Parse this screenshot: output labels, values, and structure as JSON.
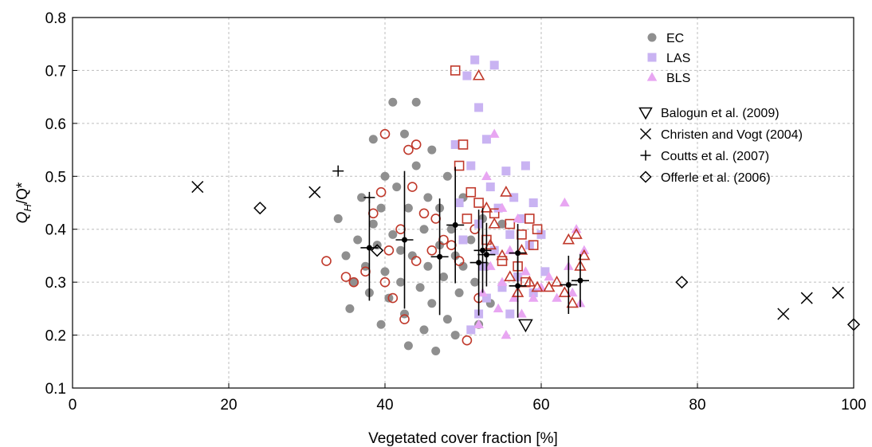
{
  "chart_data": {
    "type": "scatter",
    "xlabel": "Vegetated cover fraction [%]",
    "ylabel_main": "Q",
    "ylabel_sub": "H",
    "ylabel_rest": "/Q*",
    "xlim": [
      0,
      100
    ],
    "ylim": [
      0.1,
      0.8
    ],
    "xticks": [
      0,
      20,
      40,
      60,
      80,
      100
    ],
    "yticks": [
      0.1,
      0.2,
      0.3,
      0.4,
      0.5,
      0.6,
      0.7,
      0.8
    ],
    "grid": true,
    "legend_position": "top-right",
    "colors": {
      "ec": "#8f8f8f",
      "las": "#c9b3f2",
      "bls": "#e8a6f2",
      "outline": "#c0392b",
      "ref": "#000000"
    },
    "legend_sets": [
      {
        "label": "EC",
        "marker": "circle",
        "color": "#8f8f8f"
      },
      {
        "label": "LAS",
        "marker": "square",
        "color": "#c9b3f2"
      },
      {
        "label": "BLS",
        "marker": "triangle",
        "color": "#e8a6f2"
      }
    ],
    "legend_refs": [
      {
        "label": "Balogun et al. (2009)",
        "marker": "triangle-down"
      },
      {
        "label": "Christen and Vogt (2004)",
        "marker": "x"
      },
      {
        "label": "Coutts et al. (2007)",
        "marker": "plus"
      },
      {
        "label": "Offerle et al. (2006)",
        "marker": "diamond"
      }
    ],
    "series": [
      {
        "name": "EC",
        "marker": "circle",
        "outlined": false,
        "points": [
          [
            34,
            0.42
          ],
          [
            35,
            0.35
          ],
          [
            35.5,
            0.25
          ],
          [
            36,
            0.3
          ],
          [
            36.5,
            0.38
          ],
          [
            37,
            0.46
          ],
          [
            37.5,
            0.33
          ],
          [
            38,
            0.28
          ],
          [
            38.5,
            0.57
          ],
          [
            38.5,
            0.41
          ],
          [
            39,
            0.37
          ],
          [
            39.5,
            0.44
          ],
          [
            39.5,
            0.22
          ],
          [
            40,
            0.32
          ],
          [
            40,
            0.5
          ],
          [
            40.5,
            0.27
          ],
          [
            41,
            0.39
          ],
          [
            41,
            0.64
          ],
          [
            41.5,
            0.48
          ],
          [
            42,
            0.36
          ],
          [
            42,
            0.3
          ],
          [
            42.5,
            0.24
          ],
          [
            42.5,
            0.58
          ],
          [
            43,
            0.44
          ],
          [
            43,
            0.18
          ],
          [
            43.5,
            0.35
          ],
          [
            44,
            0.52
          ],
          [
            44,
            0.64
          ],
          [
            44.5,
            0.29
          ],
          [
            45,
            0.4
          ],
          [
            45,
            0.21
          ],
          [
            45.5,
            0.46
          ],
          [
            45.5,
            0.33
          ],
          [
            46,
            0.55
          ],
          [
            46,
            0.26
          ],
          [
            46.5,
            0.17
          ],
          [
            47,
            0.37
          ],
          [
            47,
            0.44
          ],
          [
            47.5,
            0.31
          ],
          [
            48,
            0.5
          ],
          [
            48,
            0.23
          ],
          [
            48.5,
            0.4
          ],
          [
            49,
            0.35
          ],
          [
            49,
            0.2
          ],
          [
            49.5,
            0.28
          ],
          [
            50,
            0.46
          ],
          [
            50,
            0.33
          ],
          [
            51,
            0.38
          ],
          [
            51.5,
            0.3
          ],
          [
            52,
            0.22
          ],
          [
            52.5,
            0.42
          ],
          [
            53,
            0.33
          ],
          [
            53.5,
            0.26
          ],
          [
            54,
            0.36
          ],
          [
            55,
            0.41
          ]
        ]
      },
      {
        "name": "EC outlined",
        "marker": "circle",
        "outlined": true,
        "points": [
          [
            32.5,
            0.34
          ],
          [
            35,
            0.31
          ],
          [
            36,
            0.3
          ],
          [
            37.5,
            0.32
          ],
          [
            38.5,
            0.43
          ],
          [
            39.5,
            0.47
          ],
          [
            40,
            0.58
          ],
          [
            40,
            0.3
          ],
          [
            40.5,
            0.36
          ],
          [
            41,
            0.27
          ],
          [
            42,
            0.4
          ],
          [
            42.5,
            0.23
          ],
          [
            43,
            0.55
          ],
          [
            43.5,
            0.48
          ],
          [
            44,
            0.56
          ],
          [
            44,
            0.34
          ],
          [
            45,
            0.43
          ],
          [
            46,
            0.36
          ],
          [
            46.5,
            0.42
          ],
          [
            47.5,
            0.38
          ],
          [
            48.5,
            0.37
          ],
          [
            49.5,
            0.34
          ],
          [
            50.5,
            0.19
          ],
          [
            51.5,
            0.4
          ],
          [
            52,
            0.27
          ]
        ]
      },
      {
        "name": "LAS",
        "marker": "square",
        "outlined": false,
        "points": [
          [
            49,
            0.56
          ],
          [
            49.5,
            0.45
          ],
          [
            50,
            0.38
          ],
          [
            50.5,
            0.69
          ],
          [
            51,
            0.52
          ],
          [
            51.5,
            0.72
          ],
          [
            52,
            0.63
          ],
          [
            52,
            0.41
          ],
          [
            52.5,
            0.33
          ],
          [
            53,
            0.57
          ],
          [
            53,
            0.27
          ],
          [
            53.5,
            0.48
          ],
          [
            54,
            0.71
          ],
          [
            54,
            0.36
          ],
          [
            54.5,
            0.44
          ],
          [
            55,
            0.29
          ],
          [
            55.5,
            0.51
          ],
          [
            56,
            0.39
          ],
          [
            56,
            0.24
          ],
          [
            56.5,
            0.46
          ],
          [
            57,
            0.31
          ],
          [
            57.5,
            0.42
          ],
          [
            58,
            0.52
          ],
          [
            58.5,
            0.37
          ],
          [
            59,
            0.28
          ],
          [
            59,
            0.45
          ],
          [
            60,
            0.39
          ],
          [
            60.5,
            0.32
          ],
          [
            51,
            0.21
          ],
          [
            52,
            0.24
          ]
        ]
      },
      {
        "name": "LAS outlined",
        "marker": "square",
        "outlined": true,
        "points": [
          [
            49,
            0.7
          ],
          [
            49.5,
            0.52
          ],
          [
            50,
            0.56
          ],
          [
            50.5,
            0.42
          ],
          [
            51,
            0.47
          ],
          [
            52,
            0.45
          ],
          [
            53,
            0.38
          ],
          [
            54,
            0.43
          ],
          [
            55,
            0.34
          ],
          [
            56,
            0.41
          ],
          [
            57,
            0.33
          ],
          [
            57.5,
            0.39
          ],
          [
            58,
            0.3
          ],
          [
            58.5,
            0.42
          ],
          [
            59,
            0.37
          ],
          [
            59.5,
            0.4
          ]
        ]
      },
      {
        "name": "BLS",
        "marker": "triangle",
        "outlined": false,
        "points": [
          [
            52,
            0.22
          ],
          [
            52.5,
            0.28
          ],
          [
            53,
            0.5
          ],
          [
            53.5,
            0.33
          ],
          [
            54,
            0.58
          ],
          [
            54.5,
            0.25
          ],
          [
            55,
            0.44
          ],
          [
            55,
            0.3
          ],
          [
            55.5,
            0.2
          ],
          [
            56,
            0.36
          ],
          [
            56.5,
            0.27
          ],
          [
            57,
            0.42
          ],
          [
            57.5,
            0.24
          ],
          [
            58,
            0.32
          ],
          [
            59,
            0.27
          ],
          [
            60,
            0.29
          ],
          [
            61,
            0.31
          ],
          [
            62,
            0.27
          ],
          [
            63,
            0.45
          ],
          [
            63.5,
            0.33
          ],
          [
            64,
            0.28
          ],
          [
            64.5,
            0.4
          ],
          [
            65,
            0.26
          ],
          [
            65.5,
            0.36
          ]
        ]
      },
      {
        "name": "BLS outlined",
        "marker": "triangle",
        "outlined": true,
        "points": [
          [
            52,
            0.69
          ],
          [
            53,
            0.44
          ],
          [
            53.5,
            0.37
          ],
          [
            54,
            0.41
          ],
          [
            55,
            0.35
          ],
          [
            55.5,
            0.47
          ],
          [
            56,
            0.31
          ],
          [
            57,
            0.28
          ],
          [
            57.5,
            0.36
          ],
          [
            58.5,
            0.3
          ],
          [
            59.5,
            0.29
          ],
          [
            61,
            0.29
          ],
          [
            62,
            0.3
          ],
          [
            63,
            0.28
          ],
          [
            63.5,
            0.38
          ],
          [
            64,
            0.26
          ],
          [
            64.5,
            0.39
          ],
          [
            65,
            0.33
          ],
          [
            65.5,
            0.35
          ]
        ]
      },
      {
        "name": "Balogun et al. (2009)",
        "marker": "triangle-down",
        "outlined": false,
        "points": [
          [
            58,
            0.22
          ]
        ]
      },
      {
        "name": "Christen and Vogt (2004)",
        "marker": "x",
        "outlined": false,
        "points": [
          [
            16,
            0.48
          ],
          [
            31,
            0.47
          ],
          [
            91,
            0.24
          ],
          [
            94,
            0.27
          ],
          [
            98,
            0.28
          ]
        ]
      },
      {
        "name": "Coutts et al. (2007)",
        "marker": "plus",
        "outlined": false,
        "points": [
          [
            34,
            0.51
          ],
          [
            38,
            0.46
          ]
        ]
      },
      {
        "name": "Offerle et al. (2006)",
        "marker": "diamond",
        "outlined": false,
        "points": [
          [
            24,
            0.44
          ],
          [
            39,
            0.36
          ],
          [
            78,
            0.3
          ],
          [
            100,
            0.22
          ]
        ]
      },
      {
        "name": "Means",
        "marker": "errorbar",
        "outlined": false,
        "points": [
          [
            38,
            0.365,
            0.1
          ],
          [
            42.5,
            0.38,
            0.13
          ],
          [
            47,
            0.348,
            0.11
          ],
          [
            49,
            0.408,
            0.11
          ],
          [
            52,
            0.337,
            0.1
          ],
          [
            52.5,
            0.36,
            0.08
          ],
          [
            53,
            0.352,
            0.06
          ],
          [
            57,
            0.355,
            0.055
          ],
          [
            57,
            0.293,
            0.06
          ],
          [
            63.5,
            0.295,
            0.055
          ],
          [
            65,
            0.303,
            0.05
          ]
        ]
      }
    ]
  }
}
